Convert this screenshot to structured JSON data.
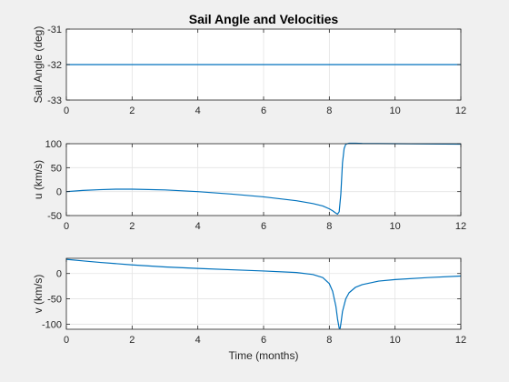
{
  "chart_data": [
    {
      "type": "line",
      "title": "Sail Angle and Velocities",
      "xlabel": "",
      "ylabel": "Sail Angle (deg)",
      "xlim": [
        0,
        12
      ],
      "ylim": [
        -33,
        -31
      ],
      "xticks": [
        "0",
        "2",
        "4",
        "6",
        "8",
        "10",
        "12"
      ],
      "yticks": [
        "-31",
        "-32",
        "-33"
      ],
      "ytick_values": [
        -31,
        -32,
        -33
      ],
      "grid": true,
      "color": "#0072bd",
      "series": [
        {
          "x": [
            0,
            12
          ],
          "y": [
            -32,
            -32
          ]
        }
      ]
    },
    {
      "type": "line",
      "title": "",
      "xlabel": "",
      "ylabel": "u (km/s)",
      "xlim": [
        0,
        12
      ],
      "ylim": [
        -50,
        100
      ],
      "xticks": [
        "0",
        "2",
        "4",
        "6",
        "8",
        "10",
        "12"
      ],
      "yticks": [
        "100",
        "50",
        "0",
        "-50"
      ],
      "ytick_values": [
        100,
        50,
        0,
        -50
      ],
      "grid": true,
      "color": "#0072bd",
      "series": [
        {
          "x": [
            0,
            0.5,
            1,
            1.5,
            2,
            3,
            4,
            5,
            6,
            7,
            7.5,
            7.8,
            8.0,
            8.1,
            8.2,
            8.25,
            8.3,
            8.35,
            8.4,
            8.45,
            8.5,
            8.6,
            8.8,
            9,
            10,
            11,
            12
          ],
          "y": [
            0,
            2.5,
            4,
            5,
            5,
            3.5,
            0,
            -5,
            -11,
            -19,
            -25,
            -30,
            -36,
            -40,
            -45,
            -47,
            -42,
            -5,
            60,
            90,
            99,
            101,
            101,
            100.5,
            100,
            99.5,
            99
          ]
        }
      ]
    },
    {
      "type": "line",
      "title": "",
      "xlabel": "Time (months)",
      "ylabel": "v (km/s)",
      "xlim": [
        0,
        12
      ],
      "ylim": [
        -110,
        30
      ],
      "xticks": [
        "0",
        "2",
        "4",
        "6",
        "8",
        "10",
        "12"
      ],
      "yticks": [
        "0",
        "-50",
        "-100"
      ],
      "ytick_values": [
        0,
        -50,
        -100
      ],
      "grid": true,
      "color": "#0072bd",
      "series": [
        {
          "x": [
            0,
            0.5,
            1,
            2,
            3,
            4,
            5,
            6,
            7,
            7.5,
            7.8,
            8.0,
            8.1,
            8.2,
            8.25,
            8.3,
            8.33,
            8.36,
            8.4,
            8.5,
            8.6,
            8.8,
            9,
            9.5,
            10,
            11,
            12
          ],
          "y": [
            28,
            25,
            22,
            17,
            13,
            10,
            7.5,
            5,
            2,
            -2,
            -8,
            -20,
            -35,
            -65,
            -90,
            -108,
            -108,
            -95,
            -75,
            -50,
            -38,
            -27,
            -22,
            -15,
            -12,
            -8,
            -5
          ]
        }
      ]
    }
  ]
}
